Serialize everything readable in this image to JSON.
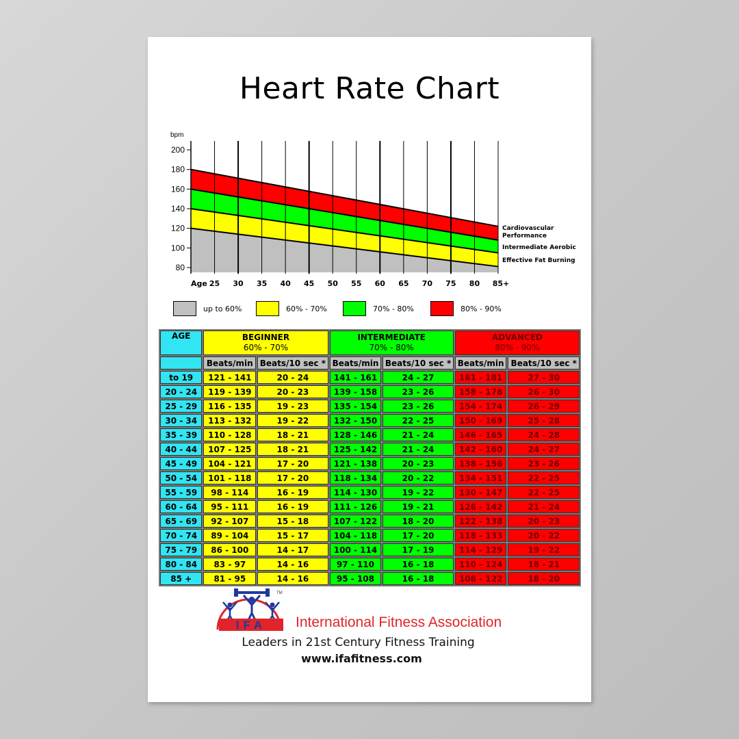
{
  "title": "Heart Rate Chart",
  "chart_data": {
    "type": "area",
    "ylabel": "bpm",
    "xlabel": "Age",
    "x": [
      20,
      85
    ],
    "x_ticks": [
      "25",
      "30",
      "35",
      "40",
      "45",
      "50",
      "55",
      "60",
      "65",
      "70",
      "75",
      "80",
      "85+"
    ],
    "x_tick_values": [
      25,
      30,
      35,
      40,
      45,
      50,
      55,
      60,
      65,
      70,
      75,
      80,
      85
    ],
    "y_ticks": [
      80,
      100,
      120,
      140,
      160,
      180,
      200
    ],
    "ylim": [
      70,
      210
    ],
    "xlim": [
      20,
      85
    ],
    "series": [
      {
        "name": "up to 60%",
        "color": "#c0c0c0",
        "lower": [
          70,
          70
        ],
        "upper": [
          120,
          81
        ]
      },
      {
        "name": "60% - 70%",
        "color": "#ffff00",
        "lower": [
          120,
          81
        ],
        "upper": [
          140,
          95
        ]
      },
      {
        "name": "70% - 80%",
        "color": "#00ff00",
        "lower": [
          140,
          95
        ],
        "upper": [
          160,
          108
        ]
      },
      {
        "name": "80% - 90%",
        "color": "#ff0000",
        "lower": [
          160,
          108
        ],
        "upper": [
          180,
          122
        ]
      }
    ],
    "annotations": [
      "Cardiovascular Performance",
      "Intermediate Aerobic",
      "Effective Fat Burning"
    ],
    "legend": [
      "up to 60%",
      "60% - 70%",
      "70% - 80%",
      "80% - 90%"
    ]
  },
  "table": {
    "age_header": "AGE",
    "groups": [
      {
        "name": "BEGINNER",
        "range": "60% - 70%"
      },
      {
        "name": "INTERMEDIATE",
        "range": "70% - 80%"
      },
      {
        "name": "ADVANCED",
        "range": "80% - 90%"
      }
    ],
    "sub_headers": [
      "Beats/min",
      "Beats/10 sec *",
      "Beats/min",
      "Beats/10 sec *",
      "Beats/min",
      "Beats/10 sec *"
    ],
    "rows": [
      [
        "to 19",
        "121 - 141",
        "20 - 24",
        "141 - 161",
        "24 - 27",
        "161 - 181",
        "27 - 30"
      ],
      [
        "20 - 24",
        "119 - 139",
        "20 - 23",
        "139 - 158",
        "23 - 26",
        "158 - 178",
        "26 - 30"
      ],
      [
        "25 - 29",
        "116 - 135",
        "19 - 23",
        "135 - 154",
        "23 - 26",
        "154 - 174",
        "26 - 29"
      ],
      [
        "30 - 34",
        "113 - 132",
        "19 - 22",
        "132 - 150",
        "22 - 25",
        "150 - 169",
        "25 - 28"
      ],
      [
        "35 - 39",
        "110 - 128",
        "18 - 21",
        "128 - 146",
        "21 - 24",
        "146 - 165",
        "24 - 28"
      ],
      [
        "40 - 44",
        "107 - 125",
        "18 - 21",
        "125 - 142",
        "21 - 24",
        "142 - 160",
        "24 - 27"
      ],
      [
        "45 - 49",
        "104 - 121",
        "17 - 20",
        "121 - 138",
        "20 - 23",
        "138 - 156",
        "23 - 26"
      ],
      [
        "50 - 54",
        "101 - 118",
        "17 - 20",
        "118 - 134",
        "20 - 22",
        "134 - 151",
        "22 - 25"
      ],
      [
        "55 - 59",
        "98 - 114",
        "16 - 19",
        "114 - 130",
        "19 - 22",
        "130 - 147",
        "22 - 25"
      ],
      [
        "60 - 64",
        "95 - 111",
        "16 - 19",
        "111 - 126",
        "19 - 21",
        "126 - 142",
        "21 - 24"
      ],
      [
        "65 - 69",
        "92 - 107",
        "15 - 18",
        "107 - 122",
        "18 - 20",
        "122 - 138",
        "20 - 23"
      ],
      [
        "70 - 74",
        "89 - 104",
        "15 - 17",
        "104 - 118",
        "17 - 20",
        "118 - 133",
        "20 - 22"
      ],
      [
        "75 - 79",
        "86 - 100",
        "14 - 17",
        "100 - 114",
        "17 - 19",
        "114 - 129",
        "19 - 22"
      ],
      [
        "80 - 84",
        "83 - 97",
        "14 - 16",
        "97 - 110",
        "16 - 18",
        "110 - 124",
        "18 - 21"
      ],
      [
        "85 +",
        "81 - 95",
        "14 - 16",
        "95 - 108",
        "16 - 18",
        "108 - 122",
        "18 - 20"
      ]
    ]
  },
  "footer": {
    "logo_text": "IFA",
    "trademark": "TM",
    "org_name": "International Fitness Association",
    "tagline": "Leaders in 21st Century Fitness Training",
    "website": "www.ifafitness.com"
  },
  "colors": {
    "age": "#31e5f2",
    "beginner": "#ffff00",
    "intermediate": "#00ff00",
    "advanced": "#ff0000",
    "gray": "#c0c0c0",
    "brand": "#e0242a",
    "logo_blue": "#1e3a9c"
  }
}
